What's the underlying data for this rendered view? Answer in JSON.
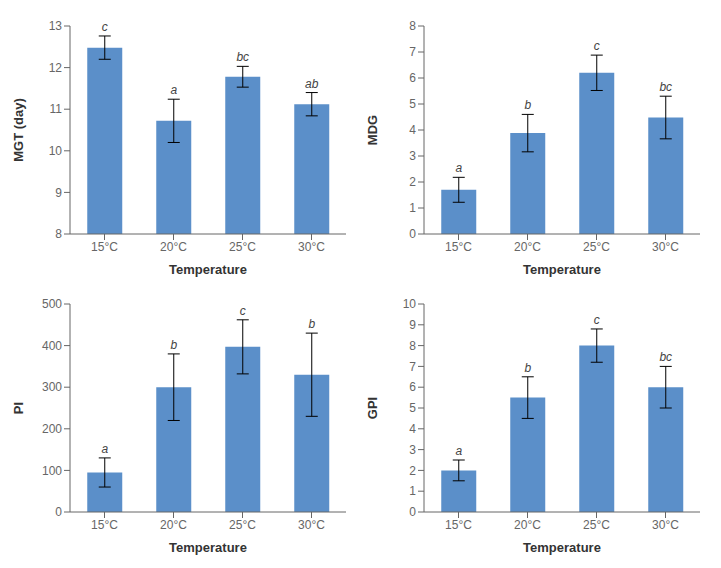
{
  "chart_data": [
    {
      "type": "bar",
      "xlabel": "Temperature",
      "ylabel": "MGT (day)",
      "categories": [
        "15°C",
        "20°C",
        "25°C",
        "30°C"
      ],
      "values": [
        12.48,
        10.72,
        11.78,
        11.12
      ],
      "errors": [
        0.28,
        0.52,
        0.25,
        0.28
      ],
      "annotations": [
        "c",
        "a",
        "bc",
        "ab"
      ],
      "color": "#5B8FC9",
      "ylim": [
        8,
        13
      ],
      "yticks": [
        8,
        9,
        10,
        11,
        12,
        13
      ],
      "grid": false
    },
    {
      "type": "bar",
      "xlabel": "Temperature",
      "ylabel": "MDG",
      "categories": [
        "15°C",
        "20°C",
        "25°C",
        "30°C"
      ],
      "values": [
        1.7,
        3.88,
        6.2,
        4.48
      ],
      "errors": [
        0.48,
        0.72,
        0.68,
        0.82
      ],
      "annotations": [
        "a",
        "b",
        "c",
        "bc"
      ],
      "color": "#5B8FC9",
      "ylim": [
        0,
        8
      ],
      "yticks": [
        0,
        1,
        2,
        3,
        4,
        5,
        6,
        7,
        8
      ],
      "grid": false
    },
    {
      "type": "bar",
      "xlabel": "Temperature",
      "ylabel": "PI",
      "categories": [
        "15°C",
        "20°C",
        "25°C",
        "30°C"
      ],
      "values": [
        95,
        300,
        397,
        330
      ],
      "errors": [
        35,
        80,
        65,
        100
      ],
      "annotations": [
        "a",
        "b",
        "c",
        "b"
      ],
      "color": "#5B8FC9",
      "ylim": [
        0,
        500
      ],
      "yticks": [
        0,
        100,
        200,
        300,
        400,
        500
      ],
      "grid": false
    },
    {
      "type": "bar",
      "xlabel": "Temperature",
      "ylabel": "GPI",
      "categories": [
        "15°C",
        "20°C",
        "25°C",
        "30°C"
      ],
      "values": [
        2.0,
        5.5,
        8.0,
        6.0
      ],
      "errors": [
        0.5,
        1.0,
        0.8,
        1.0
      ],
      "annotations": [
        "a",
        "b",
        "c",
        "bc"
      ],
      "color": "#5B8FC9",
      "ylim": [
        0,
        10
      ],
      "yticks": [
        0,
        1,
        2,
        3,
        4,
        5,
        6,
        7,
        8,
        9,
        10
      ],
      "grid": false
    }
  ]
}
